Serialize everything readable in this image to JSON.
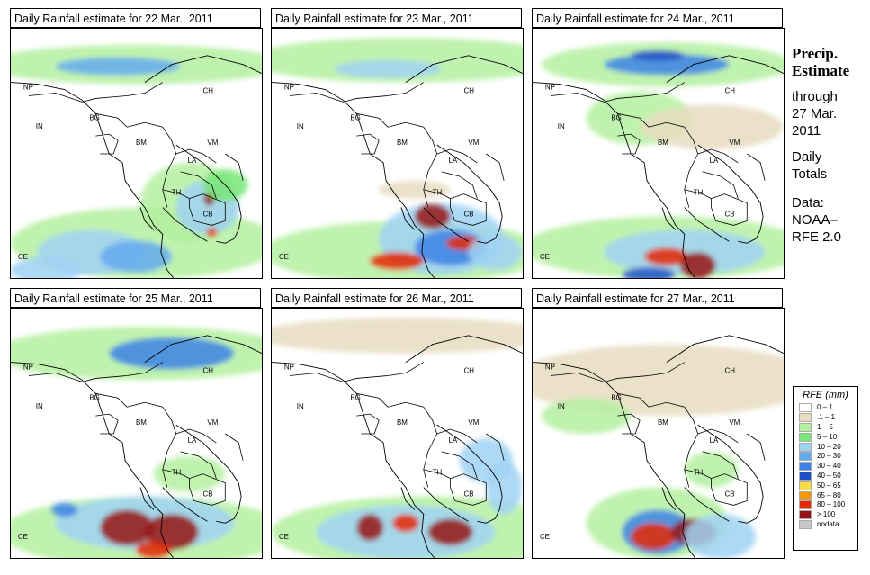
{
  "panels": [
    {
      "title": "Daily Rainfall estimate for  22 Mar., 2011"
    },
    {
      "title": "Daily Rainfall estimate for  23 Mar., 2011"
    },
    {
      "title": "Daily Rainfall estimate for  24 Mar., 2011"
    },
    {
      "title": "Daily Rainfall estimate for  25 Mar., 2011"
    },
    {
      "title": "Daily Rainfall estimate for  26 Mar., 2011"
    },
    {
      "title": "Daily Rainfall estimate for  27 Mar., 2011"
    }
  ],
  "map_labels": {
    "np": "NP",
    "ch": "CH",
    "in": "IN",
    "bg": "BG",
    "bm": "BM",
    "vm": "VM",
    "la": "LA",
    "th": "TH",
    "cb": "CB",
    "ce": "CE"
  },
  "side": {
    "heading_1": "Precip.",
    "heading_2": "Estimate",
    "line_1": "through",
    "line_2": "27 Mar.",
    "line_3": "2011",
    "line_4": "Daily",
    "line_5": "Totals",
    "line_6": "Data:",
    "line_7": "NOAA–",
    "line_8": "RFE 2.0"
  },
  "legend": {
    "title": "RFE (mm)",
    "items": [
      {
        "label": "0 – 1",
        "color": "#ffffff"
      },
      {
        "label": ".1 – 1",
        "color": "#e8dcc0"
      },
      {
        "label": "1 – 5",
        "color": "#b4f0a0"
      },
      {
        "label": "5 – 10",
        "color": "#78e678"
      },
      {
        "label": "10 – 20",
        "color": "#a0d2f5"
      },
      {
        "label": "20 – 30",
        "color": "#64aaf0"
      },
      {
        "label": "30 – 40",
        "color": "#3c82e6"
      },
      {
        "label": "40 – 50",
        "color": "#1e50c8"
      },
      {
        "label": "50 – 65",
        "color": "#fadc46"
      },
      {
        "label": "65 – 80",
        "color": "#fa9600"
      },
      {
        "label": "80 – 100",
        "color": "#e62800"
      },
      {
        "label": "> 100",
        "color": "#961414"
      },
      {
        "label": "nodata",
        "color": "#c8c8c8"
      }
    ]
  }
}
